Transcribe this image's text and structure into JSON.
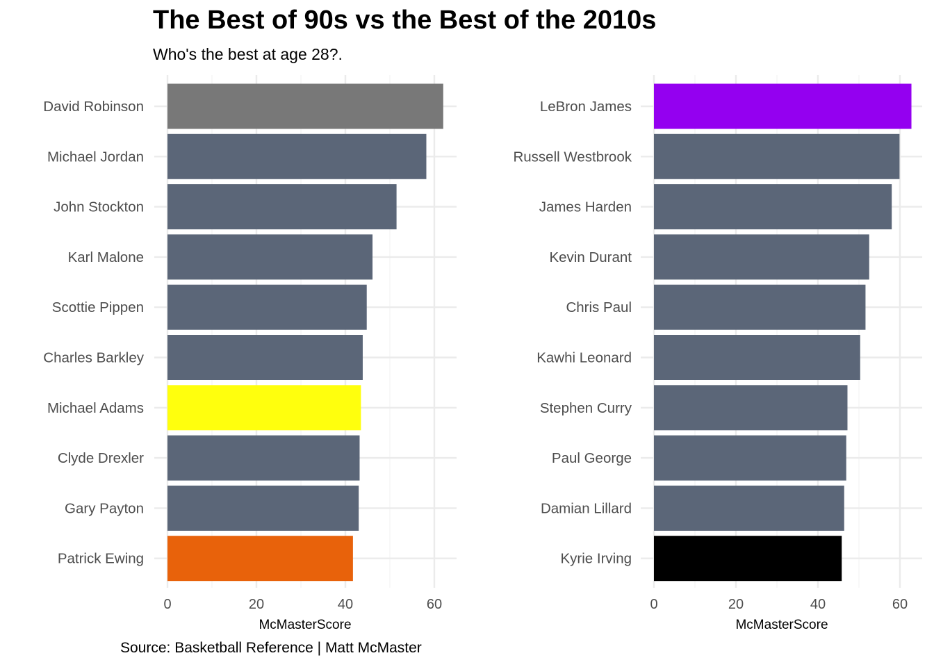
{
  "title": "The Best of 90s vs the Best of the 2010s",
  "subtitle": "Who's the best at age 28?.",
  "caption": "Source: Basketball Reference | Matt McMaster",
  "chart_data": [
    {
      "type": "bar",
      "orientation": "horizontal",
      "xlabel": "McMasterScore",
      "xlim": [
        0,
        65
      ],
      "xticks": [
        0,
        20,
        40,
        60
      ],
      "grid": true,
      "default_color": "#5b6678",
      "categories": [
        "David Robinson",
        "Michael Jordan",
        "John Stockton",
        "Karl Malone",
        "Scottie Pippen",
        "Charles Barkley",
        "Michael Adams",
        "Clyde Drexler",
        "Gary Payton",
        "Patrick Ewing"
      ],
      "values": [
        62.0,
        58.2,
        51.5,
        46.1,
        44.8,
        43.9,
        43.5,
        43.2,
        43.0,
        41.7
      ],
      "colors": [
        "#787878",
        "#5b6678",
        "#5b6678",
        "#5b6678",
        "#5b6678",
        "#5b6678",
        "#ffff0d",
        "#5b6678",
        "#5b6678",
        "#e8620b"
      ]
    },
    {
      "type": "bar",
      "orientation": "horizontal",
      "xlabel": "McMasterScore",
      "xlim": [
        0,
        65
      ],
      "xticks": [
        0,
        20,
        40,
        60
      ],
      "grid": true,
      "default_color": "#5b6678",
      "categories": [
        "LeBron James",
        "Russell Westbrook",
        "James Harden",
        "Kevin Durant",
        "Chris Paul",
        "Kawhi Leonard",
        "Stephen Curry",
        "Paul George",
        "Damian Lillard",
        "Kyrie Irving"
      ],
      "values": [
        62.8,
        59.9,
        58.0,
        52.5,
        51.6,
        50.3,
        47.2,
        46.9,
        46.4,
        45.8
      ],
      "colors": [
        "#9400f0",
        "#5b6678",
        "#5b6678",
        "#5b6678",
        "#5b6678",
        "#5b6678",
        "#5b6678",
        "#5b6678",
        "#5b6678",
        "#000000"
      ]
    }
  ]
}
